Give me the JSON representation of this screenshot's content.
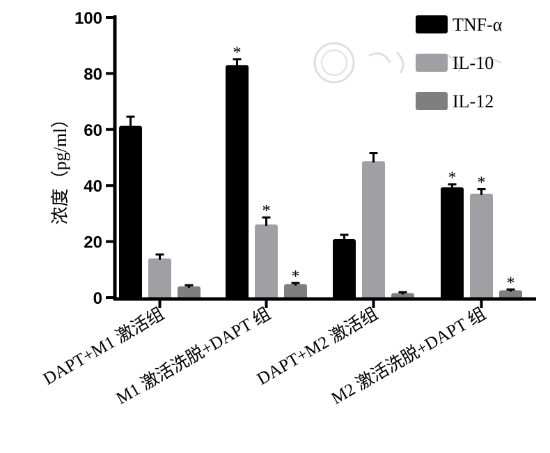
{
  "chart_data": {
    "type": "bar",
    "title": "",
    "xlabel": "",
    "ylabel": "浓度（pg/ml）",
    "ylim": [
      0,
      100
    ],
    "yticks": [
      "0",
      "20",
      "40",
      "60",
      "80",
      "100"
    ],
    "categories": [
      "DAPT+M1 激活组",
      "M1 激活洗脱+DAPT 组",
      "DAPT+M2 激活组",
      "M2 激活洗脱+DAPT 组"
    ],
    "legend_position": "top-right",
    "significance_marker": "*",
    "series": [
      {
        "name": "TNF-α",
        "color": "#000000",
        "values": [
          61.3,
          83.0,
          20.9,
          39.4
        ],
        "error": [
          3.3,
          2.1,
          1.5,
          1.0
        ],
        "significant": [
          false,
          true,
          false,
          true
        ]
      },
      {
        "name": "IL-10",
        "color": "#a0a0a4",
        "values": [
          14.0,
          26.1,
          48.7,
          37.1
        ],
        "error": [
          1.4,
          2.5,
          2.9,
          1.6
        ],
        "significant": [
          false,
          true,
          false,
          true
        ]
      },
      {
        "name": "IL-12",
        "color": "#7f7f7f",
        "values": [
          4.0,
          4.8,
          1.6,
          2.6
        ],
        "error": [
          0.4,
          0.4,
          0.3,
          0.3
        ],
        "significant": [
          false,
          true,
          false,
          true
        ]
      }
    ]
  }
}
